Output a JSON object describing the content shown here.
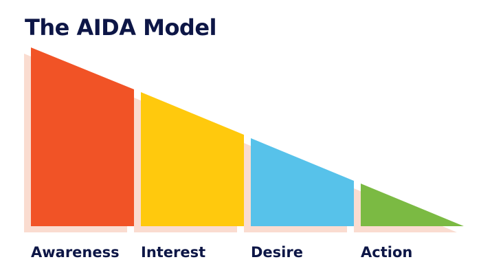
{
  "title": "The AIDA Model",
  "colors": {
    "shadow": "#fadcd0",
    "awareness": "#f15326",
    "interest": "#ffc90d",
    "desire": "#57c2ea",
    "action": "#7bba43",
    "text": "#0d1646"
  },
  "stages": [
    {
      "label": "Awareness",
      "color": "#f15326"
    },
    {
      "label": "Interest",
      "color": "#ffc90d"
    },
    {
      "label": "Desire",
      "color": "#57c2ea"
    },
    {
      "label": "Action",
      "color": "#7bba43"
    }
  ]
}
